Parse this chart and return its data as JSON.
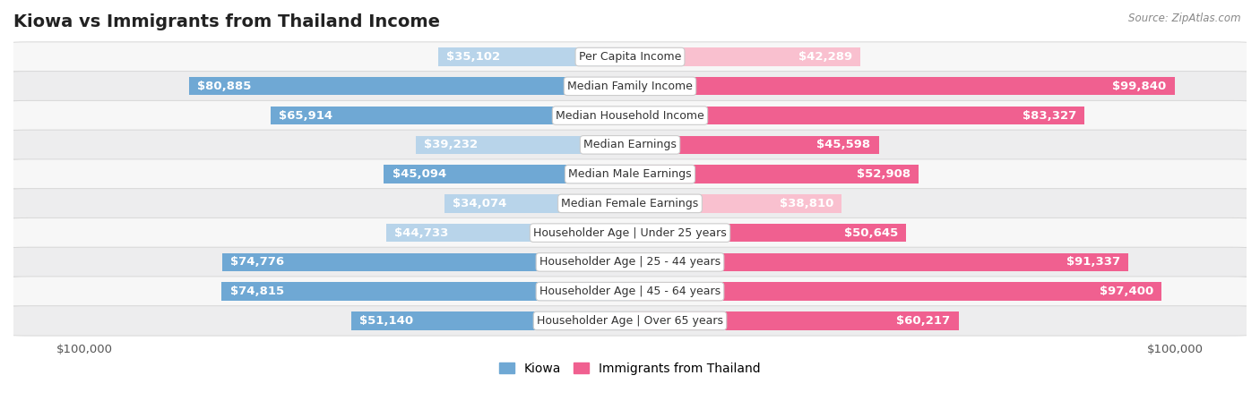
{
  "title": "Kiowa vs Immigrants from Thailand Income",
  "source": "Source: ZipAtlas.com",
  "categories": [
    "Per Capita Income",
    "Median Family Income",
    "Median Household Income",
    "Median Earnings",
    "Median Male Earnings",
    "Median Female Earnings",
    "Householder Age | Under 25 years",
    "Householder Age | 25 - 44 years",
    "Householder Age | 45 - 64 years",
    "Householder Age | Over 65 years"
  ],
  "kiowa_values": [
    35102,
    80885,
    65914,
    39232,
    45094,
    34074,
    44733,
    74776,
    74815,
    51140
  ],
  "thailand_values": [
    42289,
    99840,
    83327,
    45598,
    52908,
    38810,
    50645,
    91337,
    97400,
    60217
  ],
  "kiowa_labels": [
    "$35,102",
    "$80,885",
    "$65,914",
    "$39,232",
    "$45,094",
    "$34,074",
    "$44,733",
    "$74,776",
    "$74,815",
    "$51,140"
  ],
  "thailand_labels": [
    "$42,289",
    "$99,840",
    "$83,327",
    "$45,598",
    "$52,908",
    "$38,810",
    "$50,645",
    "$91,337",
    "$97,400",
    "$60,217"
  ],
  "kiowa_color_light": "#b8d4ea",
  "kiowa_color_dark": "#6fa8d4",
  "thailand_color_light": "#f9c0cf",
  "thailand_color_dark": "#f06090",
  "max_value": 100000,
  "legend_kiowa": "Kiowa",
  "legend_thailand": "Immigrants from Thailand",
  "bar_height": 0.62,
  "label_fontsize": 9.5,
  "title_fontsize": 14,
  "category_fontsize": 9.0,
  "white_label_threshold": 45000
}
